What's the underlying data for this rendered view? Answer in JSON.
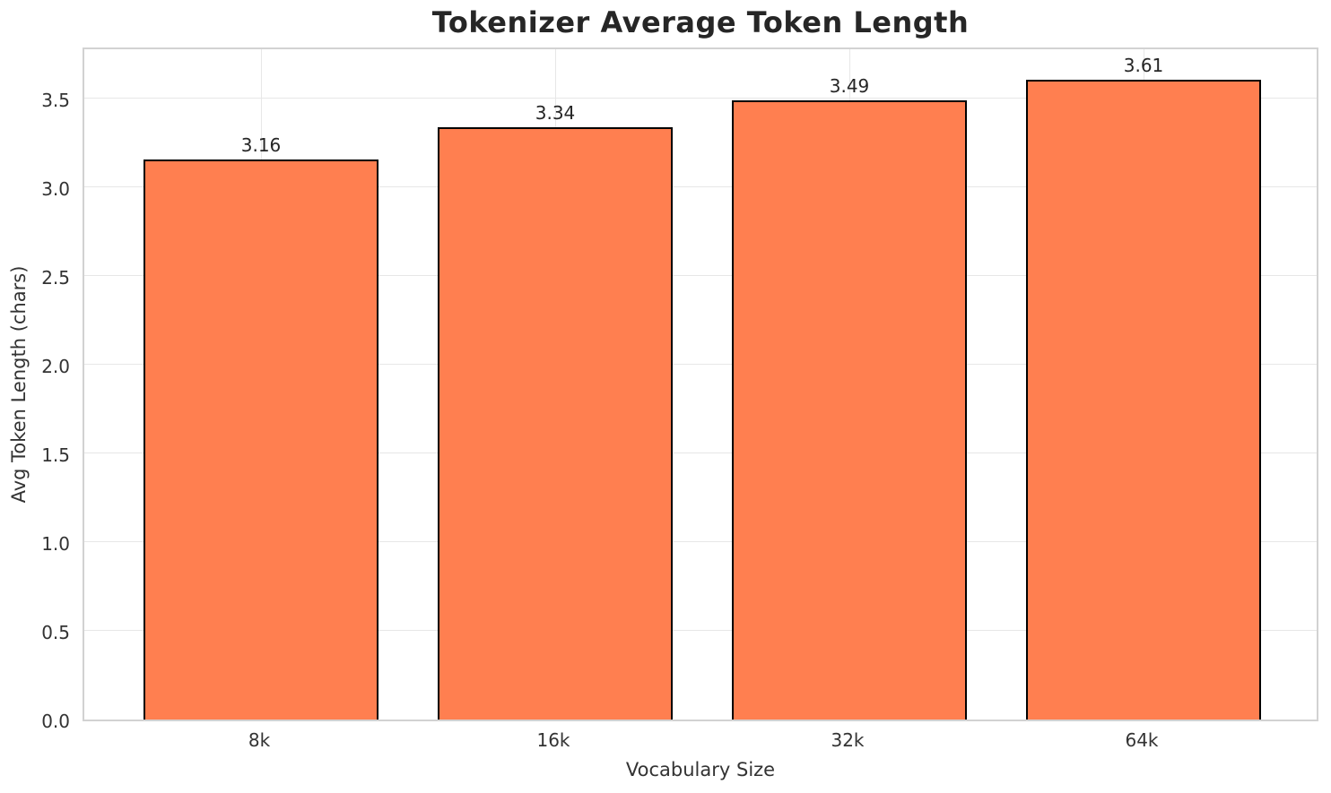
{
  "chart_data": {
    "type": "bar",
    "title": "Tokenizer Average Token Length",
    "xlabel": "Vocabulary Size",
    "ylabel": "Avg Token Length (chars)",
    "categories": [
      "8k",
      "16k",
      "32k",
      "64k"
    ],
    "values": [
      3.16,
      3.34,
      3.49,
      3.61
    ],
    "bar_value_labels": [
      "3.16",
      "3.34",
      "3.49",
      "3.61"
    ],
    "ylim": [
      0,
      3.8
    ],
    "ytick_labels": [
      "0.0",
      "0.5",
      "1.0",
      "1.5",
      "2.0",
      "2.5",
      "3.0",
      "3.5"
    ],
    "yticks": [
      0.0,
      0.5,
      1.0,
      1.5,
      2.0,
      2.5,
      3.0,
      3.5
    ],
    "grid": "both",
    "legend": "none",
    "bar_color": "#FF7F50",
    "bar_edge_color": "#000000",
    "grid_color": "#e7e7e7",
    "spine_color": "#d2d2d2",
    "background_color": "#ffffff",
    "text_color": "#262626"
  }
}
